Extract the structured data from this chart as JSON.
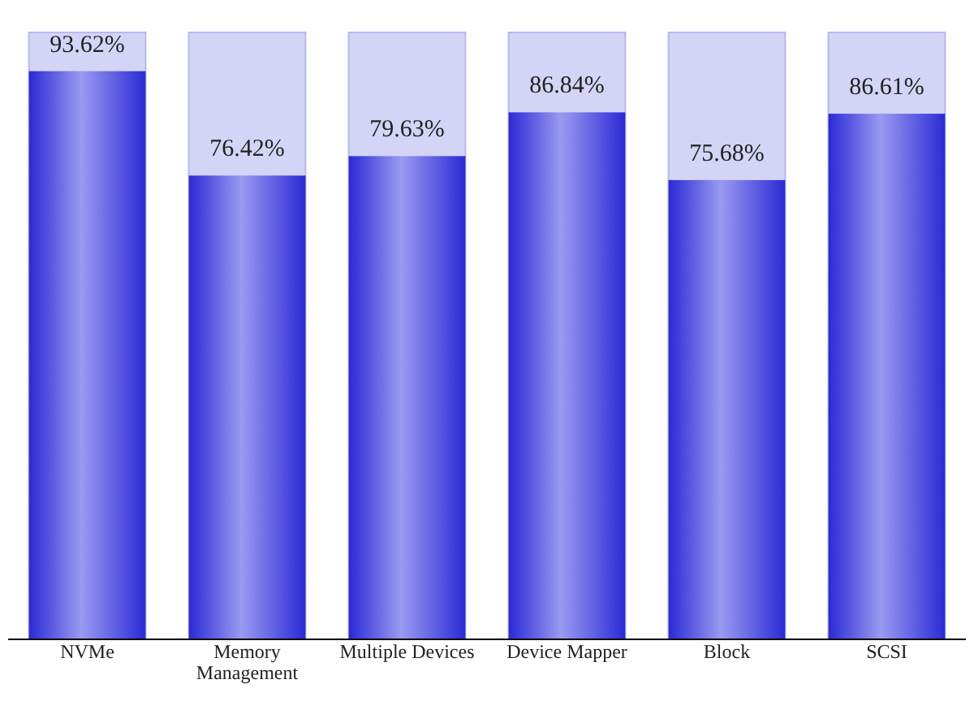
{
  "chart_data": {
    "type": "bar",
    "categories": [
      "NVMe",
      "Memory Management",
      "Multiple Devices",
      "Device Mapper",
      "Block",
      "SCSI"
    ],
    "values": [
      93.62,
      76.42,
      79.63,
      86.84,
      75.68,
      86.61
    ],
    "value_labels": [
      "93.62%",
      "76.42%",
      "79.63%",
      "86.84%",
      "75.68%",
      "86.61%"
    ],
    "color": "#2a2ad6",
    "ylim": [
      0,
      100
    ],
    "tick_labels": "x"
  }
}
